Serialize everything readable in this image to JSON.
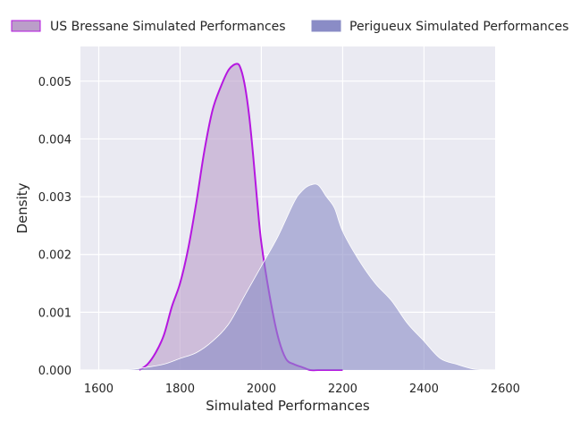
{
  "chart_data": {
    "type": "area",
    "xlabel": "Simulated Performances",
    "ylabel": "Density",
    "xlim": [
      1555,
      2575
    ],
    "ylim": [
      0,
      0.0056
    ],
    "xticks": [
      1600,
      1800,
      2000,
      2200,
      2400,
      2600
    ],
    "xtick_labels": [
      "1600",
      "1800",
      "2000",
      "2200",
      "2400",
      "2600"
    ],
    "yticks": [
      0,
      0.001,
      0.002,
      0.003,
      0.004,
      0.005
    ],
    "ytick_labels": [
      "0.000",
      "0.001",
      "0.002",
      "0.003",
      "0.004",
      "0.005"
    ],
    "grid": true,
    "legend_position": "top",
    "series": [
      {
        "name": "US Bressane Simulated Performances",
        "color": "#b517e0",
        "fill": "#bb9ec9",
        "x": [
          1700,
          1720,
          1740,
          1760,
          1780,
          1800,
          1820,
          1840,
          1860,
          1880,
          1900,
          1920,
          1940,
          1950,
          1960,
          1970,
          1980,
          1990,
          2000,
          2020,
          2040,
          2060,
          2080,
          2100,
          2120,
          2140,
          2160,
          2180,
          2200
        ],
        "y": [
          0.0,
          0.0001,
          0.0003,
          0.0006,
          0.0011,
          0.0015,
          0.0021,
          0.0029,
          0.0038,
          0.0045,
          0.0049,
          0.0052,
          0.0053,
          0.0052,
          0.0049,
          0.0044,
          0.0037,
          0.0029,
          0.0022,
          0.0013,
          0.0006,
          0.0002,
          0.0001,
          5e-05,
          0.0,
          0.0,
          0.0,
          0.0,
          0.0
        ]
      },
      {
        "name": "Perigueux Simulated Performances",
        "color": "#ffffff",
        "fill": "#8a8cc6",
        "x": [
          1620,
          1680,
          1720,
          1760,
          1800,
          1840,
          1880,
          1920,
          1960,
          2000,
          2040,
          2080,
          2100,
          2120,
          2140,
          2160,
          2180,
          2200,
          2240,
          2280,
          2320,
          2360,
          2400,
          2440,
          2480,
          2520,
          2560
        ],
        "y": [
          0.0,
          1e-05,
          5e-05,
          0.0001,
          0.0002,
          0.0003,
          0.0005,
          0.0008,
          0.0013,
          0.0018,
          0.0023,
          0.0029,
          0.0031,
          0.0032,
          0.0032,
          0.003,
          0.0028,
          0.0024,
          0.0019,
          0.0015,
          0.0012,
          0.0008,
          0.0005,
          0.0002,
          0.0001,
          2e-05,
          0.0
        ]
      }
    ]
  }
}
